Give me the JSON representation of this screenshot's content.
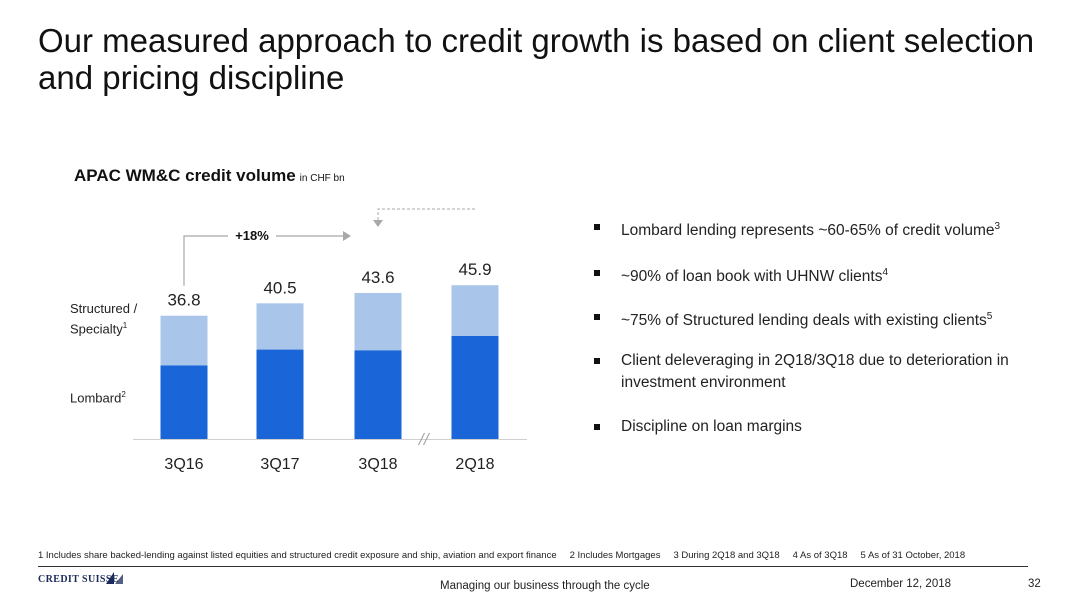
{
  "slide": {
    "title": "Our measured approach to credit growth is based on client selection and pricing discipline"
  },
  "chart_header": {
    "title": "APAC WM&C credit volume",
    "unit": "in CHF bn"
  },
  "chart_data": {
    "type": "bar",
    "stacked": true,
    "categories": [
      "3Q16",
      "3Q17",
      "3Q18",
      "2Q18"
    ],
    "totals": [
      36.8,
      40.5,
      43.6,
      45.9
    ],
    "total_labels": [
      "36.8",
      "40.5",
      "43.6",
      "45.9"
    ],
    "series": [
      {
        "name": "Lombard",
        "values": [
          22.0,
          26.7,
          26.5,
          30.8
        ],
        "color": "#1a66d9"
      },
      {
        "name": "Structured / Specialty",
        "values": [
          14.8,
          13.8,
          17.1,
          15.1
        ],
        "color": "#a9c5ea"
      }
    ],
    "annotations": [
      {
        "text": "+18%",
        "from": "3Q16",
        "to": "3Q18"
      }
    ],
    "axis_break_between": [
      "3Q18",
      "2Q18"
    ],
    "legend": "left, inline labels",
    "grid": false
  },
  "series_labels": {
    "structured_line1": "Structured /",
    "structured_line2": "Specialty",
    "structured_note": "1",
    "lombard": "Lombard",
    "lombard_note": "2"
  },
  "bullets": [
    {
      "text": "Lombard lending represents ~60-65% of credit volume",
      "note": "3"
    },
    {
      "text": "~90% of loan book with UHNW clients",
      "note": "4"
    },
    {
      "text": "~75% of Structured lending deals with existing clients",
      "note": "5"
    },
    {
      "text": "Client deleveraging in 2Q18/3Q18 due to deterioration in investment environment",
      "note": ""
    },
    {
      "text": "Discipline on loan margins",
      "note": ""
    }
  ],
  "footnotes": [
    "1 Includes share backed-lending against listed equities and structured credit exposure and ship, aviation and export finance",
    "2 Includes Mortgages",
    "3 During 2Q18 and 3Q18",
    "4 As of 3Q18",
    "5 As of 31 October, 2018"
  ],
  "footer": {
    "logo": "CREDIT SUISSE",
    "center": "Managing our business through the cycle",
    "date": "December 12, 2018",
    "page": "32"
  }
}
